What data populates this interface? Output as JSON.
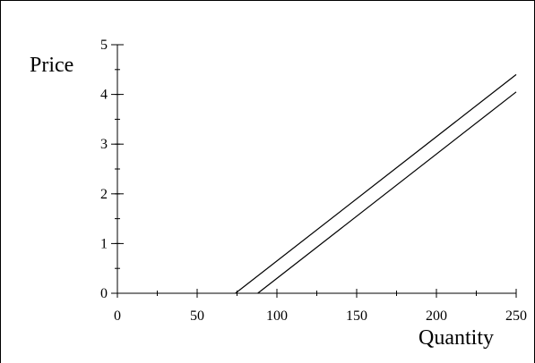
{
  "chart_data": {
    "type": "line",
    "xlabel": "Quantity",
    "ylabel": "Price",
    "xlim": [
      0,
      250
    ],
    "ylim": [
      0,
      5
    ],
    "x_ticks": [
      0,
      50,
      100,
      150,
      200,
      250
    ],
    "y_ticks": [
      0,
      1,
      2,
      3,
      4,
      5
    ],
    "x_minor_step": 25,
    "y_minor_step": 0.5,
    "grid": false,
    "legend": "none",
    "colors": {
      "line": "#000000",
      "axis": "#000000",
      "border": "#000000"
    },
    "series": [
      {
        "values_x": [
          74,
          250
        ],
        "values_y": [
          0,
          4.4
        ]
      },
      {
        "values_x": [
          88,
          250
        ],
        "values_y": [
          0,
          4.05
        ]
      }
    ]
  }
}
